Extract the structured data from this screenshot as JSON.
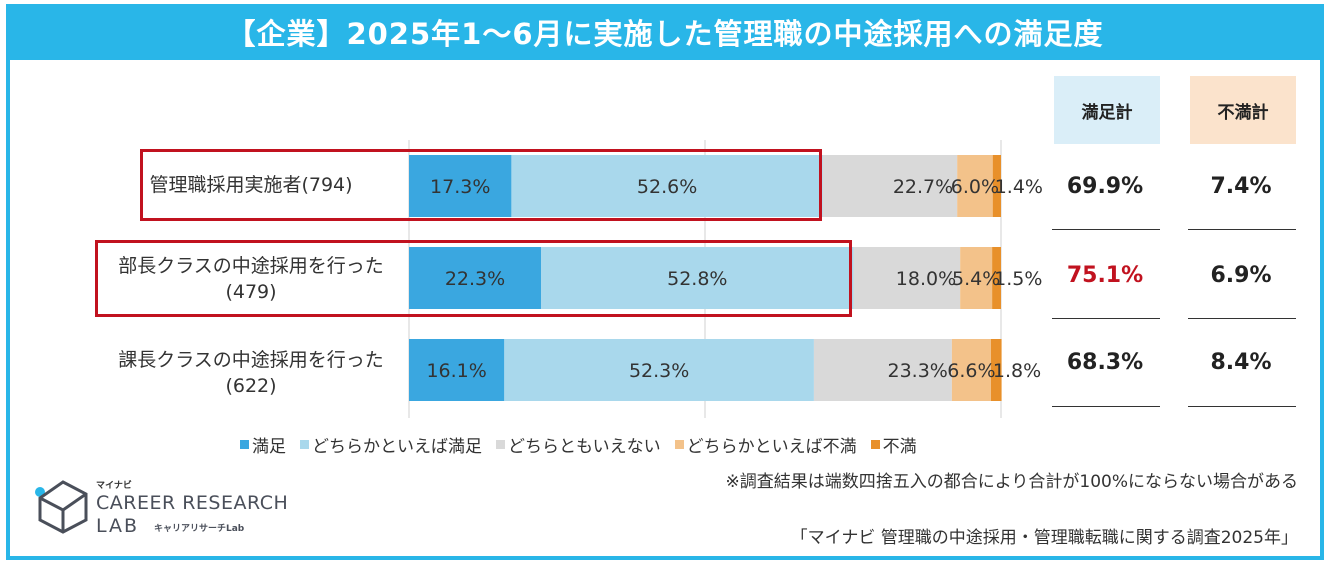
{
  "title": "【企業】2025年1～6月に実施した管理職の中途採用への満足度",
  "column_headers": {
    "satisfied_total": "満足計",
    "dissatisfied_total": "不満計"
  },
  "rows": [
    {
      "label_line1": "管理職採用実施者(794)",
      "label_line2": ""
    },
    {
      "label_line1": "部長クラスの中途採用を行った",
      "label_line2": "(479)"
    },
    {
      "label_line1": "課長クラスの中途採用を行った",
      "label_line2": "(622)"
    }
  ],
  "summary": [
    {
      "satisfied_total": "69.9%",
      "dissatisfied_total": "7.4%"
    },
    {
      "satisfied_total": "75.1%",
      "dissatisfied_total": "6.9%"
    },
    {
      "satisfied_total": "68.3%",
      "dissatisfied_total": "8.4%"
    }
  ],
  "note": "※調査結果は端数四捨五入の都合により合計が100%にならない場合がある",
  "source": "「マイナビ 管理職の中途採用・管理職転職に関する調査2025年」",
  "logo": {
    "mynavi": "マイナビ",
    "line1": "CAREER RESEARCH",
    "line2": "LAB",
    "sub": "キャリアリサーチLab"
  },
  "colors": {
    "accent": "#29b6e8",
    "highlight": "#c1121f"
  },
  "chart_data": {
    "type": "bar",
    "orientation": "horizontal",
    "stacked": true,
    "categories": [
      "管理職採用実施者(794)",
      "部長クラスの中途採用を行った(479)",
      "課長クラスの中途採用を行った(622)"
    ],
    "series": [
      {
        "name": "満足",
        "color": "#3aa7e0",
        "values": [
          17.3,
          22.3,
          16.1
        ],
        "labels": [
          "17.3%",
          "22.3%",
          "16.1%"
        ]
      },
      {
        "name": "どちらかといえば満足",
        "color": "#a9d8ec",
        "values": [
          52.6,
          52.8,
          52.3
        ],
        "labels": [
          "52.6%",
          "52.8%",
          "52.3%"
        ]
      },
      {
        "name": "どちらともいえない",
        "color": "#d9d9d9",
        "values": [
          22.7,
          18.0,
          23.3
        ],
        "labels": [
          "22.7%",
          "18.0%",
          "23.3%"
        ]
      },
      {
        "name": "どちらかといえば不満",
        "color": "#f3c28a",
        "values": [
          6.0,
          5.4,
          6.6
        ],
        "labels": [
          "6.0%",
          "5.4%",
          "6.6%"
        ]
      },
      {
        "name": "不満",
        "color": "#e8902a",
        "values": [
          1.4,
          1.5,
          1.8
        ],
        "labels": [
          "1.4%",
          "1.5%",
          "1.8%"
        ]
      }
    ],
    "xlim": [
      0,
      100
    ],
    "legend_position": "bottom",
    "highlighted_rows": [
      0,
      1
    ]
  }
}
